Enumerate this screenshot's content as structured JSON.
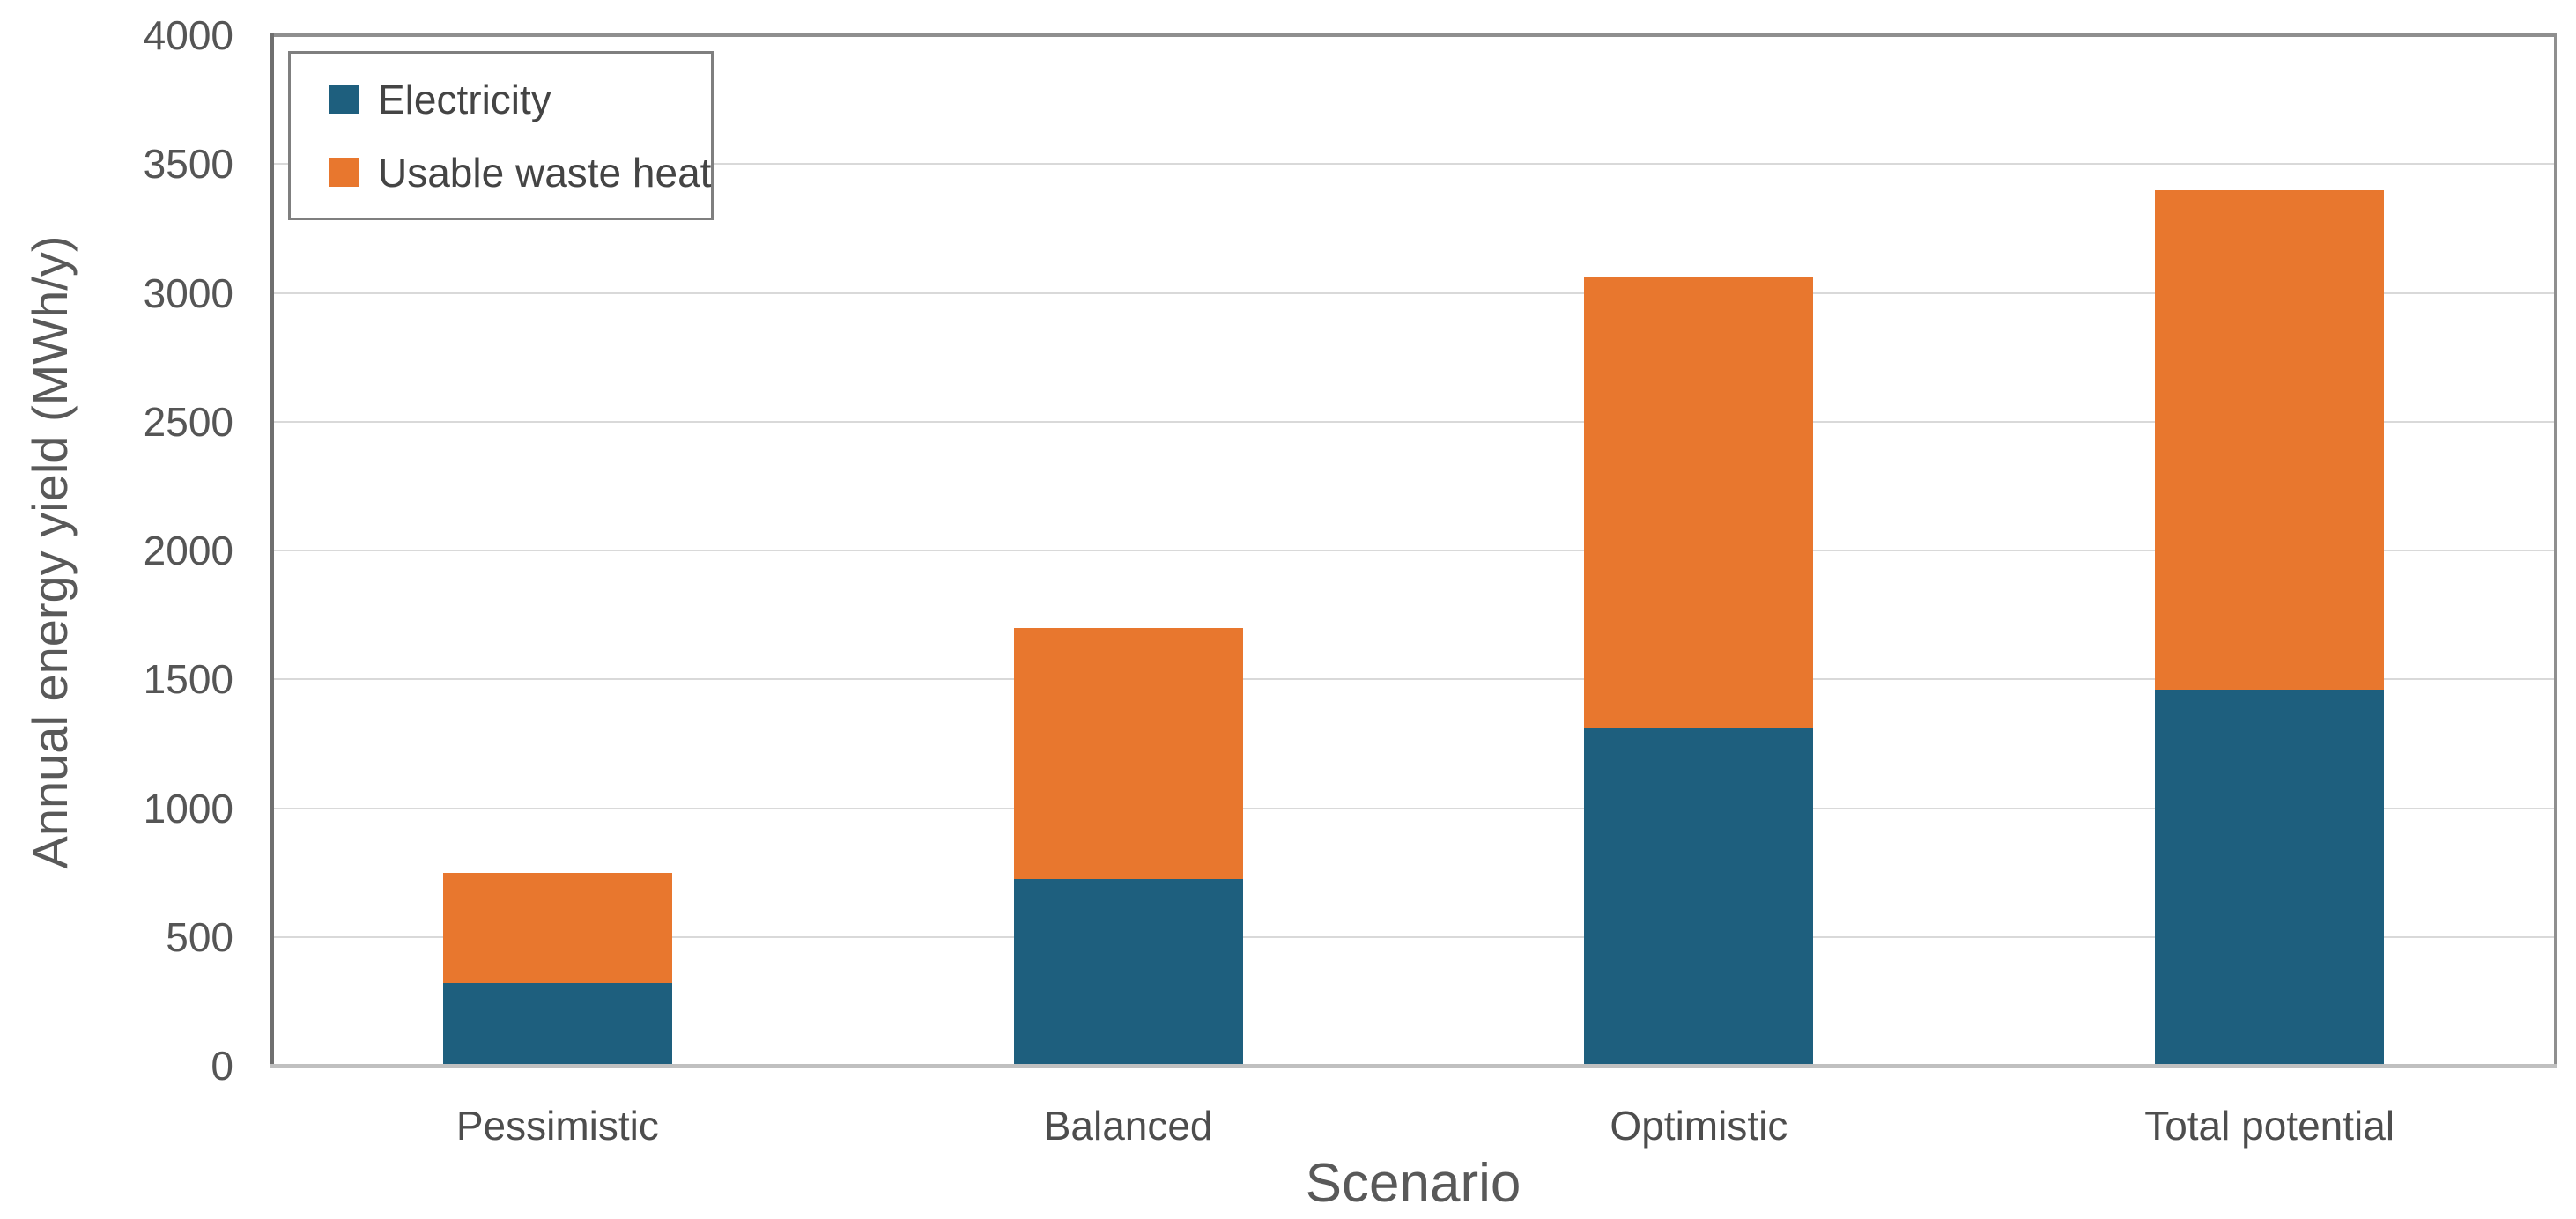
{
  "chart_data": {
    "type": "bar",
    "stacked": true,
    "title": "",
    "categories": [
      "Pessimistic",
      "Balanced",
      "Optimistic",
      "Total potential"
    ],
    "series": [
      {
        "name": "Electricity",
        "color": "#1E5F7E",
        "values": [
          320,
          725,
          1310,
          1460
        ]
      },
      {
        "name": "Usable waste heat",
        "color": "#E8772E",
        "values": [
          430,
          975,
          1750,
          1940
        ]
      }
    ],
    "stack_totals": [
      750,
      1700,
      3060,
      3400
    ],
    "xlabel": "Scenario",
    "ylabel": "Annual energy yield (MWh/y)",
    "ylim": [
      0,
      4000
    ],
    "ytick_step": 500,
    "yticks": [
      0,
      500,
      1000,
      1500,
      2000,
      2500,
      3000,
      3500,
      4000
    ],
    "grid": true,
    "legend_position": "top-left"
  },
  "palette": {
    "gridline": "#d9d9d9",
    "y_axis_line": "#6f6f6f",
    "baseline": "#c0c0c0",
    "frame": "#8f8f8f",
    "tick_text": "#555555",
    "title_text": "#595959",
    "legend_border": "#7f7f7f"
  }
}
